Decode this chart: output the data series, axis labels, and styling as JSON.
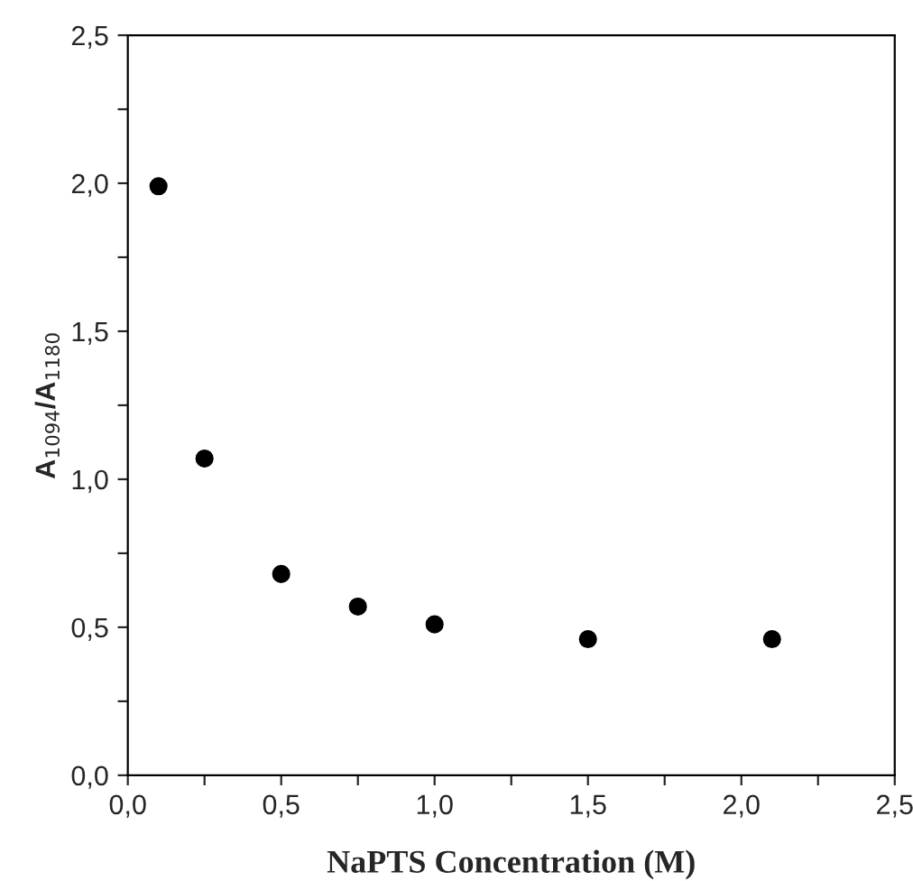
{
  "chart_data": {
    "type": "scatter",
    "xlabel": "NaPTS Concentration (M)",
    "ylabel": "A$_{1094}$/A$_{1180}$",
    "x": [
      0.1,
      0.25,
      0.5,
      0.75,
      1.0,
      1.5,
      2.1
    ],
    "values": [
      1.99,
      1.07,
      0.68,
      0.57,
      0.51,
      0.46,
      0.46
    ],
    "color": "#000000",
    "marker": "circle",
    "xlim": [
      0,
      2.5
    ],
    "ylim": [
      0,
      2.5
    ],
    "xticks": [
      {
        "value": 0,
        "label": "0,0"
      },
      {
        "value": 0.25,
        "label": null
      },
      {
        "value": 0.5,
        "label": "0,5"
      },
      {
        "value": 0.75,
        "label": null
      },
      {
        "value": 1.0,
        "label": "1,0"
      },
      {
        "value": 1.25,
        "label": null
      },
      {
        "value": 1.5,
        "label": "1,5"
      },
      {
        "value": 1.75,
        "label": null
      },
      {
        "value": 2.0,
        "label": "2,0"
      },
      {
        "value": 2.25,
        "label": null
      },
      {
        "value": 2.5,
        "label": "2,5"
      }
    ],
    "yticks": [
      {
        "value": 0,
        "label": "0,0"
      },
      {
        "value": 0.25,
        "label": null
      },
      {
        "value": 0.5,
        "label": "0,5"
      },
      {
        "value": 0.75,
        "label": null
      },
      {
        "value": 1.0,
        "label": "1,0"
      },
      {
        "value": 1.25,
        "label": null
      },
      {
        "value": 1.5,
        "label": "1,5"
      },
      {
        "value": 1.75,
        "label": null
      },
      {
        "value": 2.0,
        "label": "2,0"
      },
      {
        "value": 2.25,
        "label": null
      },
      {
        "value": 2.5,
        "label": "2,5"
      }
    ],
    "grid": false
  }
}
